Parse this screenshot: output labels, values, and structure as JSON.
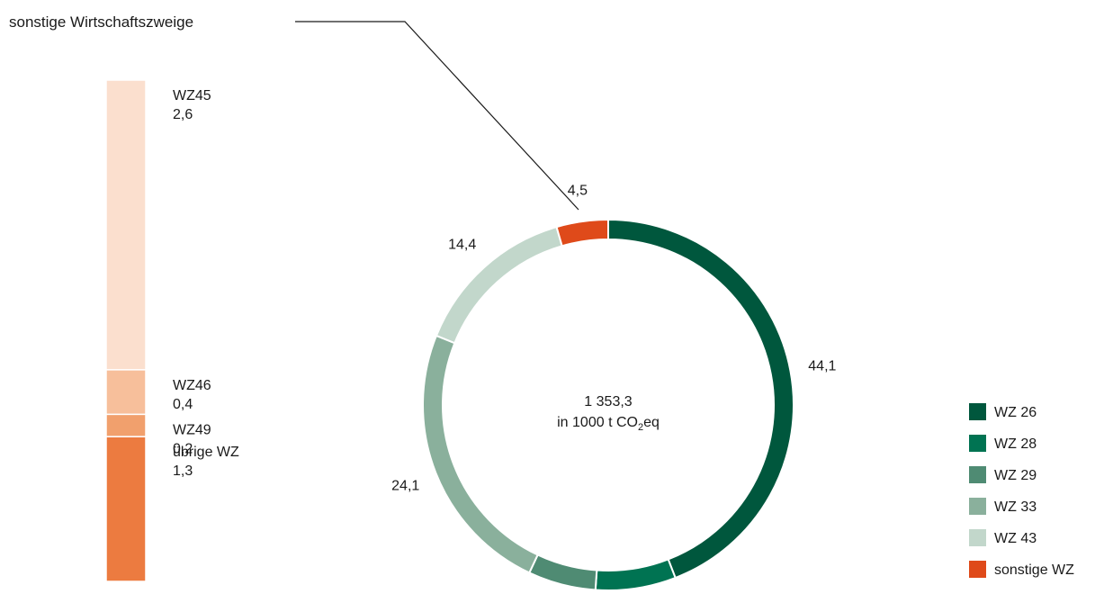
{
  "chart_data": [
    {
      "type": "bar",
      "orientation": "stacked-vertical",
      "title": "sonstige Wirtschaftszweige",
      "segments": [
        {
          "name": "übrige WZ",
          "value": 1.3,
          "label": "1,3",
          "color": "#ec7b40"
        },
        {
          "name": "WZ49",
          "value": 0.2,
          "label": "0,2",
          "color": "#f1a06d"
        },
        {
          "name": "WZ46",
          "value": 0.4,
          "label": "0,4",
          "color": "#f7bf9b"
        },
        {
          "name": "WZ45",
          "value": 2.6,
          "label": "2,6",
          "color": "#fbdfce"
        }
      ]
    },
    {
      "type": "pie",
      "variant": "donut",
      "center_value": "1 353,3",
      "center_unit_prefix": "in 1000 t CO",
      "center_unit_sub": "2",
      "center_unit_suffix": "eq",
      "slices": [
        {
          "name": "WZ 26",
          "value": 44.1,
          "label": "44,1",
          "color": "#00573d"
        },
        {
          "name": "WZ 28",
          "value": 7.0,
          "label": "7,0",
          "color": "#007352"
        },
        {
          "name": "WZ 29",
          "value": 5.9,
          "label": "5,9",
          "color": "#4f8b73"
        },
        {
          "name": "WZ 33",
          "value": 24.1,
          "label": "24,1",
          "color": "#8ab09c"
        },
        {
          "name": "WZ 43",
          "value": 14.4,
          "label": "14,4",
          "color": "#c2d7cb"
        },
        {
          "name": "sonstige WZ",
          "value": 4.5,
          "label": "4,5",
          "color": "#df4a1a"
        }
      ],
      "legend_position": "right"
    }
  ]
}
